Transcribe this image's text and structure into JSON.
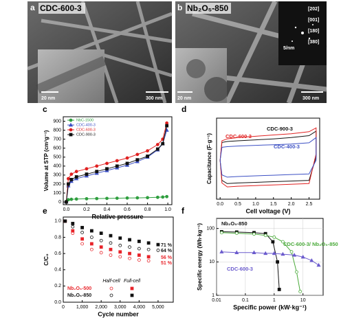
{
  "micrographs": [
    {
      "panel": "a",
      "label": "CDC-600-3",
      "inset_scale": "20 nm",
      "scale": "300 nm"
    },
    {
      "panel": "b",
      "label": "Nb₂O₅-850",
      "inset_scale": "20 nm",
      "scale": "300 nm",
      "diffraction_scale": "5/nm",
      "planes": [
        "[202]",
        "[001]",
        "[180]",
        "[380]"
      ]
    }
  ],
  "chart_data": [
    {
      "panel": "c",
      "type": "line",
      "x_label": "Relative pressure",
      "y_label": "Volume at STP (cm³g⁻¹)",
      "x": [
        0,
        0.02,
        0.05,
        0.1,
        0.2,
        0.3,
        0.4,
        0.5,
        0.6,
        0.7,
        0.8,
        0.9,
        0.95,
        0.99
      ],
      "xlim": [
        -0.03,
        1.04
      ],
      "ylim": [
        -30,
        950
      ],
      "xticks": [
        {
          "value": 0,
          "label": "0.0"
        },
        0.2,
        0.4,
        0.6,
        0.8,
        {
          "value": 1,
          "label": "1.0"
        }
      ],
      "yticks": [
        0,
        100,
        200,
        300,
        400,
        500,
        600,
        700,
        800,
        900
      ],
      "legend": "upper left",
      "series": [
        {
          "name": "NbC-1500",
          "color": "#2e9e3e",
          "marker": "circle",
          "values": [
            5,
            25,
            30,
            33,
            36,
            38,
            40,
            42,
            44,
            46,
            48,
            52,
            55,
            60
          ]
        },
        {
          "name": "CDC-400-3",
          "color": "#3b4fc4",
          "marker": "triangle",
          "values": [
            0,
            180,
            230,
            260,
            290,
            320,
            350,
            380,
            410,
            450,
            500,
            580,
            650,
            800
          ]
        },
        {
          "name": "CDC-600-3",
          "color": "#e02020",
          "marker": "circle",
          "values": [
            0,
            260,
            310,
            340,
            370,
            400,
            430,
            460,
            490,
            530,
            570,
            640,
            700,
            880
          ]
        },
        {
          "name": "CDC-900-3",
          "color": "#111111",
          "marker": "square",
          "values": [
            0,
            200,
            250,
            280,
            310,
            340,
            370,
            400,
            430,
            470,
            510,
            590,
            650,
            850
          ]
        }
      ]
    },
    {
      "panel": "d",
      "type": "line",
      "x_label": "Cell voltage (V)",
      "y_label": "Capacitance (F·g⁻¹)",
      "x": [
        0,
        0.05,
        0.2,
        0.5,
        1,
        1.5,
        2,
        2.5,
        2.7,
        2.7,
        2.5,
        2,
        1.5,
        1,
        0.5,
        0.2,
        0.05,
        0
      ],
      "xlim": [
        -0.1,
        2.8
      ],
      "ylim": [
        -120,
        130
      ],
      "xticks": [
        {
          "value": 0,
          "label": "0.0"
        },
        0.5,
        {
          "value": 1,
          "label": "1.0"
        },
        1.5,
        {
          "value": 2,
          "label": "2.0"
        },
        2.5
      ],
      "series": [
        {
          "name": "CDC-900-3",
          "color": "#111111",
          "values": [
            0,
            55,
            58,
            60,
            63,
            66,
            70,
            76,
            90,
            10,
            -62,
            -64,
            -66,
            -68,
            -70,
            -72,
            -62,
            0
          ]
        },
        {
          "name": "CDC-600-3",
          "color": "#e02020",
          "values": [
            0,
            60,
            66,
            70,
            74,
            78,
            82,
            88,
            100,
            20,
            -72,
            -74,
            -76,
            -78,
            -80,
            -82,
            -70,
            0
          ]
        },
        {
          "name": "CDC-400-3",
          "color": "#3b4fc4",
          "values": [
            0,
            40,
            42,
            44,
            46,
            48,
            50,
            54,
            70,
            0,
            -42,
            -44,
            -46,
            -48,
            -50,
            -52,
            -45,
            0
          ]
        }
      ]
    },
    {
      "panel": "e",
      "type": "scatter",
      "x_label": "Cycle number",
      "y_label": "C/C₀",
      "xlim": [
        0,
        5800
      ],
      "ylim": [
        0,
        1.05
      ],
      "xticks": [
        0,
        {
          "value": 1000,
          "label": "1,000"
        },
        {
          "value": 2000,
          "label": "2,000"
        },
        {
          "value": 3000,
          "label": "3,000"
        },
        {
          "value": 4000,
          "label": "4,000"
        },
        {
          "value": 5000,
          "label": "5,000"
        }
      ],
      "yticks": [
        {
          "value": 0,
          "label": "0.0"
        },
        0.2,
        0.4,
        0.6,
        0.8,
        {
          "value": 1,
          "label": "1.0"
        }
      ],
      "legend": {
        "columns": [
          "Half-cell",
          "Full-cell"
        ],
        "rows": [
          "Nb₂O₅-500",
          "Nb₂O₅-850"
        ]
      },
      "series": [
        {
          "row": 0,
          "column": 0,
          "color": "#e8242a",
          "marker": "open-circle",
          "x": [
            100,
            500,
            1000,
            1500,
            2000,
            2500,
            3000,
            3500,
            4000,
            4500
          ],
          "values": [
            1.0,
            0.85,
            0.72,
            0.65,
            0.61,
            0.58,
            0.56,
            0.54,
            0.52,
            0.51
          ]
        },
        {
          "row": 0,
          "column": 1,
          "color": "#e8242a",
          "marker": "square",
          "x": [
            100,
            500,
            1000,
            1500,
            2000,
            2500,
            3000,
            3500,
            4000,
            4500
          ],
          "values": [
            1.0,
            0.88,
            0.78,
            0.72,
            0.68,
            0.65,
            0.62,
            0.6,
            0.58,
            0.56
          ]
        },
        {
          "row": 1,
          "column": 0,
          "color": "#111111",
          "marker": "open-circle",
          "x": [
            100,
            500,
            1000,
            1500,
            2000,
            2500,
            3000,
            3500,
            4000,
            4500,
            5000
          ],
          "values": [
            1.0,
            0.93,
            0.86,
            0.8,
            0.76,
            0.73,
            0.7,
            0.68,
            0.66,
            0.65,
            0.64
          ]
        },
        {
          "row": 1,
          "column": 1,
          "color": "#111111",
          "marker": "square",
          "x": [
            100,
            500,
            1000,
            1500,
            2000,
            2500,
            3000,
            3500,
            4000,
            4500,
            5000
          ],
          "values": [
            1.0,
            0.97,
            0.92,
            0.88,
            0.85,
            0.82,
            0.79,
            0.77,
            0.75,
            0.73,
            0.71
          ]
        }
      ],
      "annotations": [
        {
          "text": "71 %",
          "color": "#111111"
        },
        {
          "text": "64 %",
          "color": "#111111"
        },
        {
          "text": "56 %",
          "color": "#e8242a"
        },
        {
          "text": "51 %",
          "color": "#e8242a"
        }
      ]
    },
    {
      "panel": "f",
      "type": "line",
      "x_label": "Specific power (kW·kg⁻¹)",
      "y_label": "Specific energy (Wh·kg⁻¹)",
      "xlog": true,
      "ylog": true,
      "grid": true,
      "xlim": [
        0.01,
        50
      ],
      "ylim": [
        1,
        200
      ],
      "xticks": [
        0.01,
        0.1,
        1,
        10
      ],
      "yticks": [
        1,
        10,
        100
      ],
      "series": [
        {
          "name": "Nb₂O₅-850",
          "color": "#111111",
          "marker": "square",
          "x": [
            0.015,
            0.05,
            0.2,
            0.5,
            0.9,
            1.3,
            1.5
          ],
          "values": [
            80,
            78,
            75,
            70,
            40,
            10,
            1.5
          ]
        },
        {
          "name": "CDC-600-3/ Nb₂O₅-850",
          "color": "#4aaa3a",
          "marker": "open-circle",
          "x": [
            0.015,
            0.05,
            0.2,
            0.5,
            1,
            2,
            4,
            6,
            8
          ],
          "values": [
            75,
            72,
            68,
            62,
            55,
            40,
            20,
            5,
            1.3
          ]
        },
        {
          "name": "CDC-600-3",
          "color": "#6a5acd",
          "marker": "triangle",
          "x": [
            0.015,
            0.05,
            0.2,
            0.5,
            1,
            2,
            5,
            10,
            20,
            35
          ],
          "values": [
            20,
            19,
            19,
            18,
            18,
            17,
            16,
            14,
            11,
            8
          ]
        }
      ]
    }
  ]
}
